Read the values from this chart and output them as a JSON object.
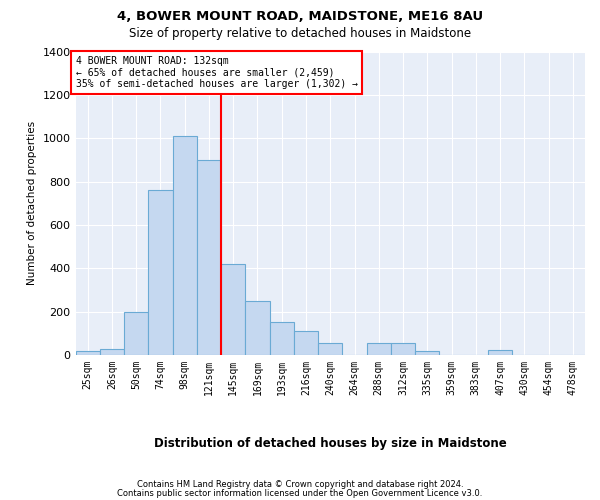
{
  "title": "4, BOWER MOUNT ROAD, MAIDSTONE, ME16 8AU",
  "subtitle": "Size of property relative to detached houses in Maidstone",
  "xlabel": "Distribution of detached houses by size in Maidstone",
  "ylabel": "Number of detached properties",
  "categories": [
    "25sqm",
    "26sqm",
    "50sqm",
    "74sqm",
    "98sqm",
    "121sqm",
    "145sqm",
    "169sqm",
    "193sqm",
    "216sqm",
    "240sqm",
    "264sqm",
    "288sqm",
    "312sqm",
    "335sqm",
    "359sqm",
    "383sqm",
    "407sqm",
    "430sqm",
    "454sqm",
    "478sqm"
  ],
  "values": [
    20,
    30,
    200,
    760,
    1010,
    900,
    420,
    250,
    155,
    110,
    55,
    0,
    55,
    55,
    20,
    0,
    0,
    25,
    0,
    0,
    0
  ],
  "bar_color": "#c5d8f0",
  "bar_edge_color": "#6aaad4",
  "vline_color": "red",
  "background_color": "#e8eef8",
  "grid_color": "#ffffff",
  "ylim": [
    0,
    1400
  ],
  "yticks": [
    0,
    200,
    400,
    600,
    800,
    1000,
    1200,
    1400
  ],
  "footer1": "Contains HM Land Registry data © Crown copyright and database right 2024.",
  "footer2": "Contains public sector information licensed under the Open Government Licence v3.0.",
  "bin_width": 24,
  "vline_bin_idx": 5,
  "annotation_title": "4 BOWER MOUNT ROAD: 132sqm",
  "annotation_line1": "← 65% of detached houses are smaller (2,459)",
  "annotation_line2": "35% of semi-detached houses are larger (1,302) →"
}
